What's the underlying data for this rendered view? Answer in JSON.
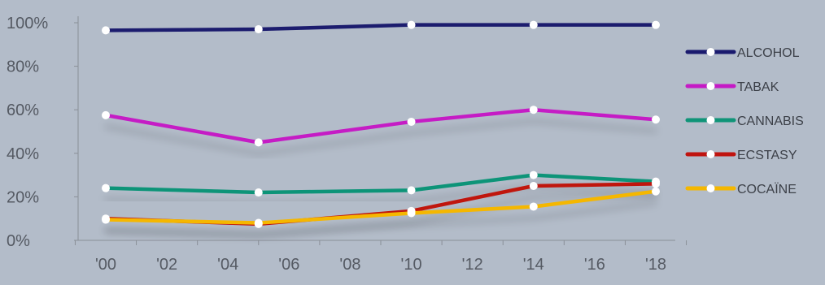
{
  "chart_data": {
    "type": "line",
    "title": "",
    "xlabel": "",
    "ylabel": "",
    "x_tick_labels": [
      "'00",
      "'02",
      "'04",
      "'06",
      "'08",
      "'10",
      "'12",
      "'14",
      "'16",
      "'18"
    ],
    "x_ticks": [
      2000,
      2002,
      2004,
      2006,
      2008,
      2010,
      2012,
      2014,
      2016,
      2018
    ],
    "xlim": [
      2000,
      2018
    ],
    "y_tick_labels": [
      "0%",
      "20%",
      "40%",
      "60%",
      "80%",
      "100%"
    ],
    "y_ticks": [
      0,
      20,
      40,
      60,
      80,
      100
    ],
    "ylim": [
      0,
      100
    ],
    "grid": false,
    "legend_position": "right",
    "x": [
      2000,
      2005,
      2010,
      2014,
      2018
    ],
    "series": [
      {
        "name": "ALCOHOL",
        "color": "#1a1a6e",
        "values": [
          96.5,
          97,
          99,
          99,
          99
        ]
      },
      {
        "name": "TABAK",
        "color": "#c51ac5",
        "values": [
          57.5,
          45,
          54.5,
          60,
          55.5
        ]
      },
      {
        "name": "CANNABIS",
        "color": "#0f9478",
        "values": [
          24,
          22,
          23,
          30,
          27
        ]
      },
      {
        "name": "ECSTASY",
        "color": "#c0140f",
        "values": [
          10,
          7.5,
          13.5,
          25,
          26
        ]
      },
      {
        "name": "COCAÏNE",
        "color": "#f5b700",
        "values": [
          9.5,
          8,
          12.5,
          15.5,
          22.5
        ]
      }
    ]
  }
}
